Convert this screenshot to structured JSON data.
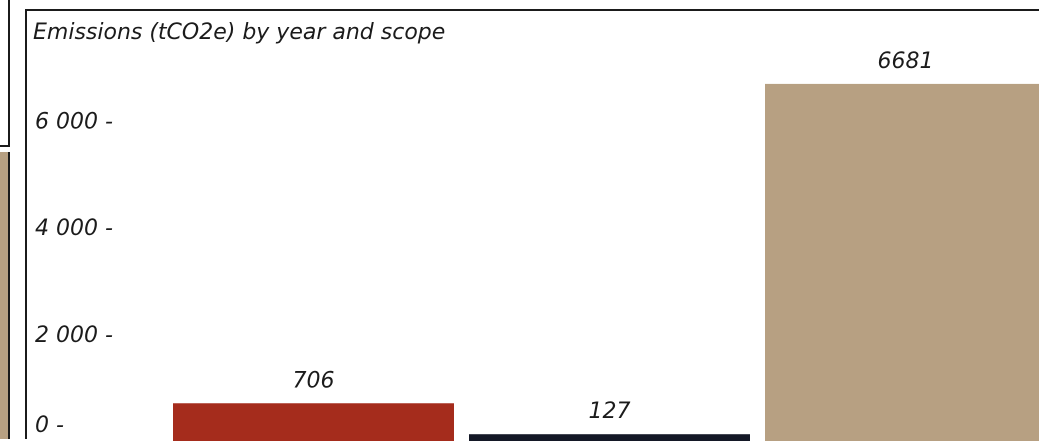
{
  "colors": {
    "scope1": "#a52c1c",
    "scope2": "#141826",
    "scope3": "#b7a082",
    "text": "#1b1b1b"
  },
  "chart_data": {
    "type": "bar",
    "title": "Emissions (tCO2e) by year and scope",
    "xlabel": "",
    "ylabel": "",
    "ylim": [
      0,
      7500
    ],
    "yticks": [
      0,
      2000,
      4000,
      6000
    ],
    "ytick_labels": [
      "0 -",
      "2 000 -",
      "4 000 -",
      "6 000 -"
    ],
    "grid": false,
    "series": [
      {
        "values": [
          706,
          127,
          6681
        ],
        "colors": [
          "#a52c1c",
          "#141826",
          "#b7a082"
        ],
        "labels": [
          "706",
          "127",
          "6681"
        ]
      }
    ]
  }
}
